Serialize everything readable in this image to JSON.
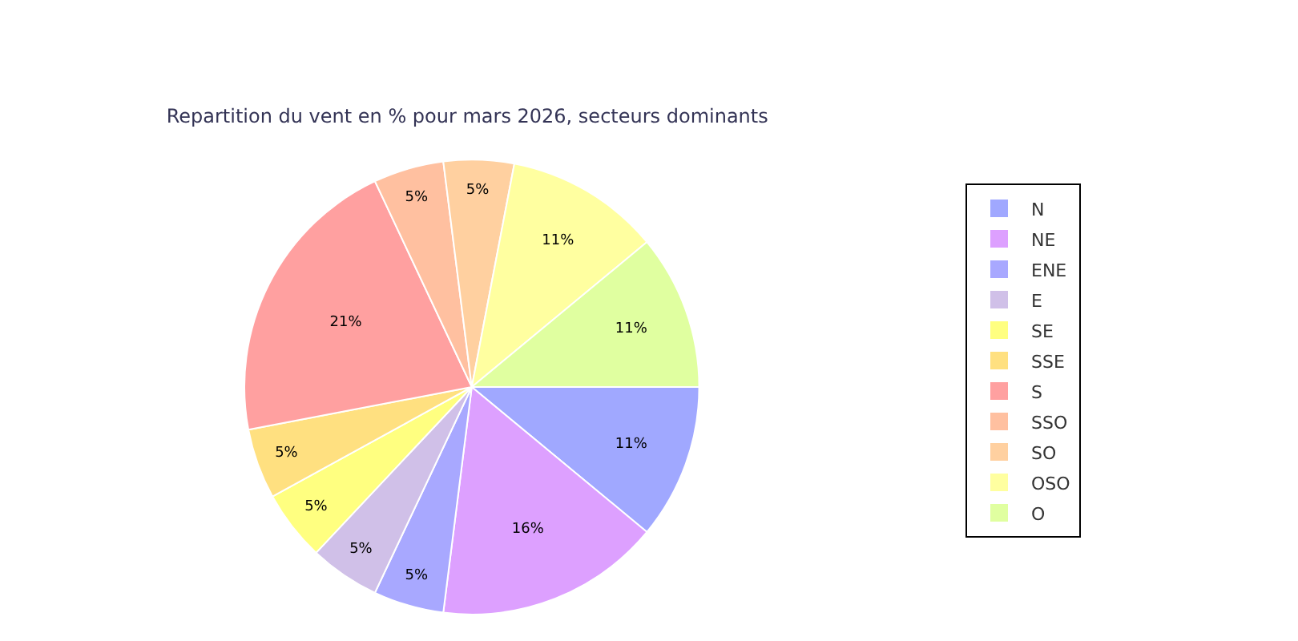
{
  "chart_data": {
    "type": "pie",
    "title": "Repartition du vent en % pour mars 2026, secteurs dominants",
    "categories": [
      "N",
      "NE",
      "ENE",
      "E",
      "SE",
      "SSE",
      "S",
      "SSO",
      "SO",
      "OSO",
      "O"
    ],
    "values": [
      11,
      16,
      5,
      5,
      5,
      5,
      21,
      5,
      5,
      11,
      11
    ],
    "value_labels": [
      "11%",
      "16%",
      "5%",
      "5%",
      "5%",
      "5%",
      "21%",
      "5%",
      "5%",
      "11%",
      "11%"
    ],
    "colors": [
      "#a0a8ff",
      "#dda0ff",
      "#a8a8ff",
      "#d0c0e8",
      "#ffff80",
      "#ffe080",
      "#ffa0a0",
      "#ffc0a0",
      "#ffd0a0",
      "#ffffa0",
      "#e0ffa0"
    ],
    "legend": "right"
  }
}
